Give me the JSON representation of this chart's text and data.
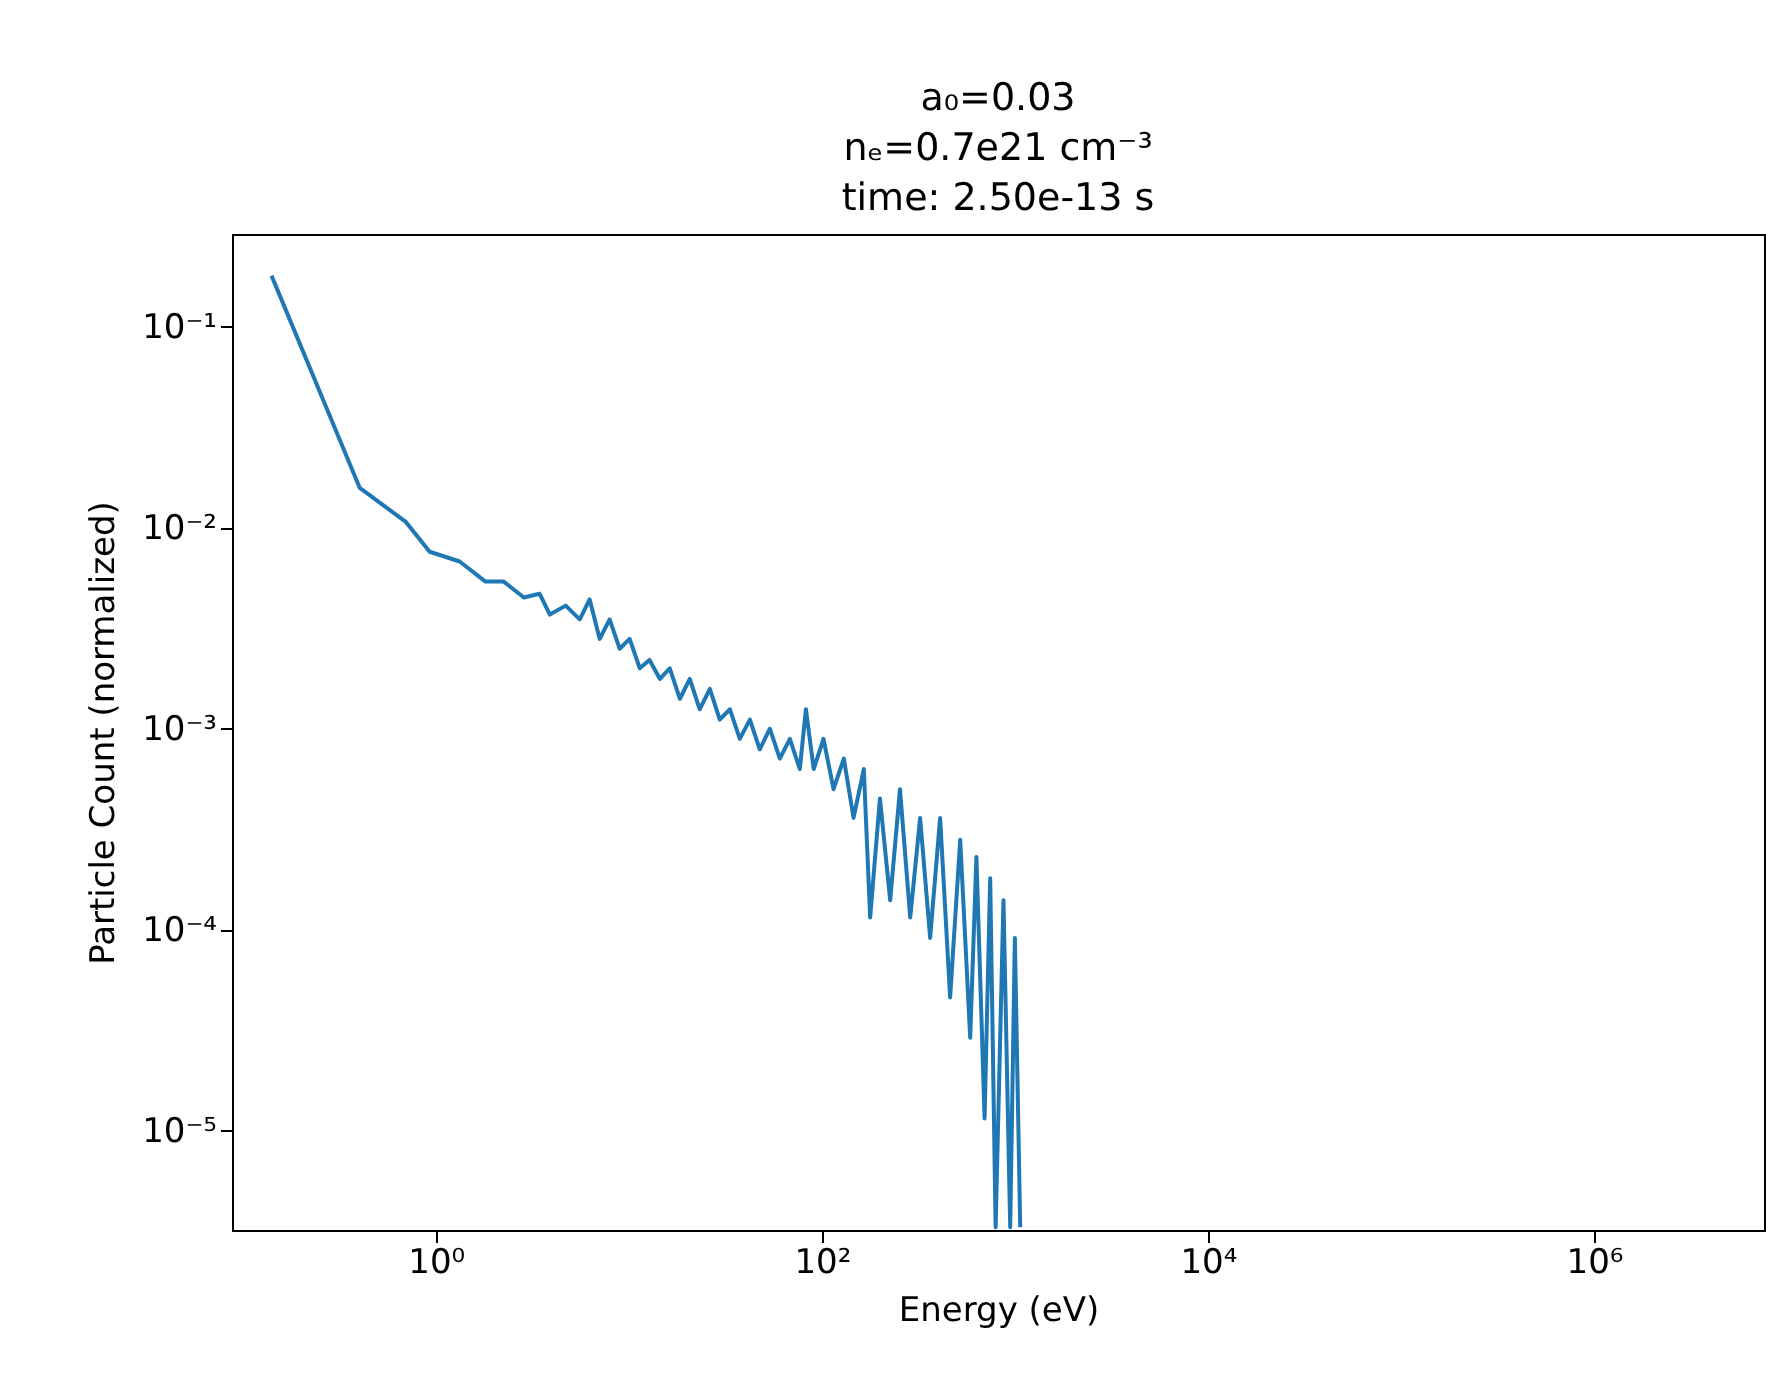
{
  "chart_data": {
    "type": "line",
    "title": "a₀=0.03\nnₑ=0.7e21 cm⁻³\ntime: 2.50e-13 s",
    "xlabel": "Energy (eV)",
    "ylabel": "Particle Count (normalized)",
    "log": "xy",
    "grid": false,
    "xlim": [
      0.088,
      7600000
    ],
    "ylim": [
      3.2e-06,
      0.29
    ],
    "xticks": [
      {
        "value": 1,
        "label": "10⁰"
      },
      {
        "value": 100,
        "label": "10²"
      },
      {
        "value": 10000,
        "label": "10⁴"
      },
      {
        "value": 1000000,
        "label": "10⁶"
      }
    ],
    "yticks": [
      {
        "value": 1e-05,
        "label": "10⁻⁵"
      },
      {
        "value": 0.0001,
        "label": "10⁻⁴"
      },
      {
        "value": 0.001,
        "label": "10⁻³"
      },
      {
        "value": 0.01,
        "label": "10⁻²"
      },
      {
        "value": 0.1,
        "label": "10⁻¹"
      }
    ],
    "series": [
      {
        "color": "#1f77b4",
        "x": [
          0.141,
          0.404,
          0.7,
          0.93,
          1.33,
          1.81,
          2.25,
          2.86,
          3.45,
          3.9,
          4.71,
          5.57,
          6.27,
          7.07,
          7.96,
          8.97,
          10.1,
          11.4,
          12.8,
          14.5,
          16.3,
          18.4,
          20.7,
          23.3,
          26.3,
          29.6,
          33.4,
          37.6,
          42.4,
          47.7,
          53.8,
          60.6,
          68.3,
          76.9,
          82.7,
          90.8,
          102,
          115,
          130,
          146,
          165,
          178,
          200,
          226,
          254,
          287,
          323,
          364,
          410,
          462,
          521,
          587,
          632,
          697,
          745,
          795,
          873,
          946,
          1000,
          1066
        ],
        "values": [
          0.18,
          0.0158,
          0.0107,
          0.0076,
          0.0068,
          0.0054,
          0.0054,
          0.0045,
          0.0047,
          0.0037,
          0.0041,
          0.0035,
          0.0044,
          0.0028,
          0.0035,
          0.0025,
          0.0028,
          0.002,
          0.0022,
          0.00177,
          0.002,
          0.00141,
          0.00177,
          0.00125,
          0.00158,
          0.00111,
          0.00125,
          0.00089,
          0.00111,
          0.00079,
          0.001,
          0.00071,
          0.00089,
          0.00063,
          0.00125,
          0.00063,
          0.00089,
          0.0005,
          0.00071,
          0.00036,
          0.00063,
          0.000115,
          0.00045,
          0.00014,
          0.0005,
          0.000115,
          0.00036,
          9.1e-05,
          0.00036,
          4.6e-05,
          0.00028,
          2.9e-05,
          0.00023,
          1.15e-05,
          0.00018,
          3.3e-06,
          0.00014,
          3.3e-06,
          9.1e-05,
          3.3e-06
        ]
      }
    ]
  }
}
